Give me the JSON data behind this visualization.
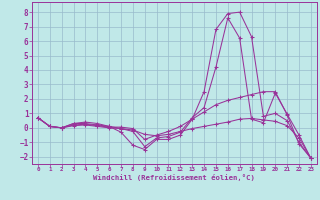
{
  "xlabel": "Windchill (Refroidissement éolien,°C)",
  "xlim": [
    -0.5,
    23.5
  ],
  "ylim": [
    -2.5,
    8.7
  ],
  "xticks": [
    0,
    1,
    2,
    3,
    4,
    5,
    6,
    7,
    8,
    9,
    10,
    11,
    12,
    13,
    14,
    15,
    16,
    17,
    18,
    19,
    20,
    21,
    22,
    23
  ],
  "yticks": [
    -2,
    -1,
    0,
    1,
    2,
    3,
    4,
    5,
    6,
    7,
    8
  ],
  "bg_color": "#c0e8e8",
  "line_color": "#993399",
  "grid_color": "#99bbcc",
  "lines": [
    {
      "x": [
        0,
        1,
        2,
        3,
        4,
        5,
        6,
        7,
        8,
        9,
        10,
        11,
        12,
        13,
        14,
        15,
        16,
        17,
        18,
        19,
        20,
        21,
        22,
        23
      ],
      "y": [
        0.7,
        0.1,
        0.0,
        0.3,
        0.4,
        0.3,
        0.1,
        -0.3,
        -1.2,
        -1.5,
        -0.8,
        -0.8,
        -0.5,
        0.6,
        2.5,
        6.8,
        7.9,
        8.0,
        6.3,
        0.8,
        1.0,
        0.5,
        -1.0,
        -2.1
      ]
    },
    {
      "x": [
        0,
        1,
        2,
        3,
        4,
        5,
        6,
        7,
        8,
        9,
        10,
        11,
        12,
        13,
        14,
        15,
        16,
        17,
        18,
        19,
        20,
        21,
        22,
        23
      ],
      "y": [
        0.7,
        0.1,
        0.0,
        0.3,
        0.3,
        0.2,
        0.1,
        -0.05,
        -0.25,
        -1.3,
        -0.7,
        -0.6,
        -0.3,
        0.7,
        1.4,
        4.2,
        7.6,
        6.2,
        0.6,
        0.35,
        2.4,
        0.95,
        -0.5,
        -2.1
      ]
    },
    {
      "x": [
        0,
        1,
        2,
        3,
        4,
        5,
        6,
        7,
        8,
        9,
        10,
        11,
        12,
        13,
        14,
        15,
        16,
        17,
        18,
        19,
        20,
        21,
        22,
        23
      ],
      "y": [
        0.7,
        0.1,
        0.0,
        0.2,
        0.25,
        0.15,
        0.05,
        0.05,
        -0.05,
        -0.8,
        -0.5,
        -0.25,
        0.1,
        0.6,
        1.1,
        1.6,
        1.9,
        2.1,
        2.3,
        2.5,
        2.5,
        0.9,
        -1.1,
        -2.1
      ]
    },
    {
      "x": [
        0,
        1,
        2,
        3,
        4,
        5,
        6,
        7,
        8,
        9,
        10,
        11,
        12,
        13,
        14,
        15,
        16,
        17,
        18,
        19,
        20,
        21,
        22,
        23
      ],
      "y": [
        0.7,
        0.1,
        0.0,
        0.15,
        0.2,
        0.1,
        0.0,
        -0.05,
        -0.15,
        -0.45,
        -0.55,
        -0.45,
        -0.25,
        -0.05,
        0.1,
        0.25,
        0.4,
        0.6,
        0.65,
        0.55,
        0.45,
        0.15,
        -0.7,
        -2.1
      ]
    }
  ]
}
